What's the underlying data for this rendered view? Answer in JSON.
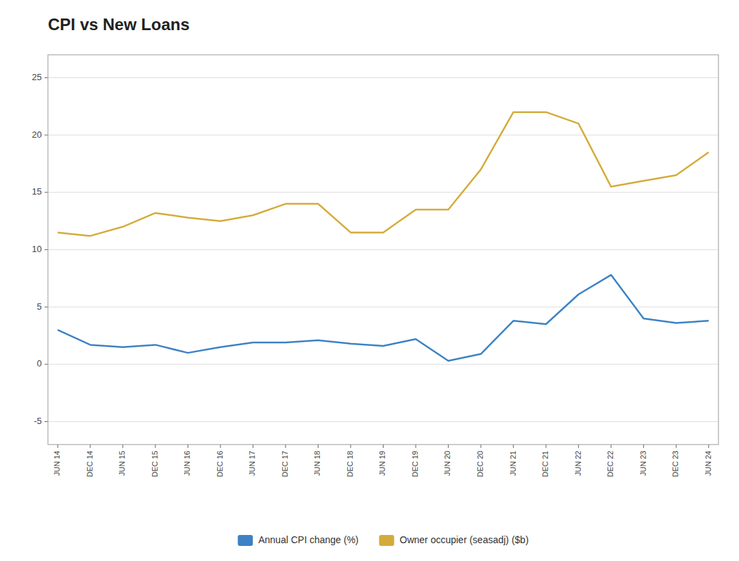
{
  "chart_data": {
    "type": "line",
    "title": "CPI vs New Loans",
    "categories": [
      "JUN 14",
      "DEC 14",
      "JUN 15",
      "DEC 15",
      "JUN 16",
      "DEC 16",
      "JUN 17",
      "DEC 17",
      "JUN 18",
      "DEC 18",
      "JUN 19",
      "DEC 19",
      "JUN 20",
      "DEC 20",
      "JUN 21",
      "DEC 21",
      "JUN 22",
      "DEC 22",
      "JUN 23",
      "DEC 23",
      "JUN 24"
    ],
    "series": [
      {
        "name": "Annual CPI change (%)",
        "color": "#3c82c4",
        "values": [
          3.0,
          1.7,
          1.5,
          1.7,
          1.0,
          1.5,
          1.9,
          1.9,
          2.1,
          1.8,
          1.6,
          2.2,
          0.3,
          0.9,
          3.8,
          3.5,
          6.1,
          7.8,
          4.0,
          3.6,
          3.8
        ]
      },
      {
        "name": "Owner occupier (seasadj) ($b)",
        "color": "#d4ab3a",
        "values": [
          11.5,
          11.2,
          12.0,
          13.2,
          12.8,
          12.5,
          13.0,
          14.0,
          14.0,
          11.5,
          11.5,
          13.5,
          13.5,
          17.0,
          22.0,
          22.0,
          21.0,
          15.5,
          16.0,
          16.5,
          18.5
        ]
      }
    ],
    "ylim": [
      -7,
      27
    ],
    "yticks": [
      -5,
      0,
      5,
      10,
      15,
      20,
      25
    ],
    "grid": true,
    "legend": "bottom"
  }
}
